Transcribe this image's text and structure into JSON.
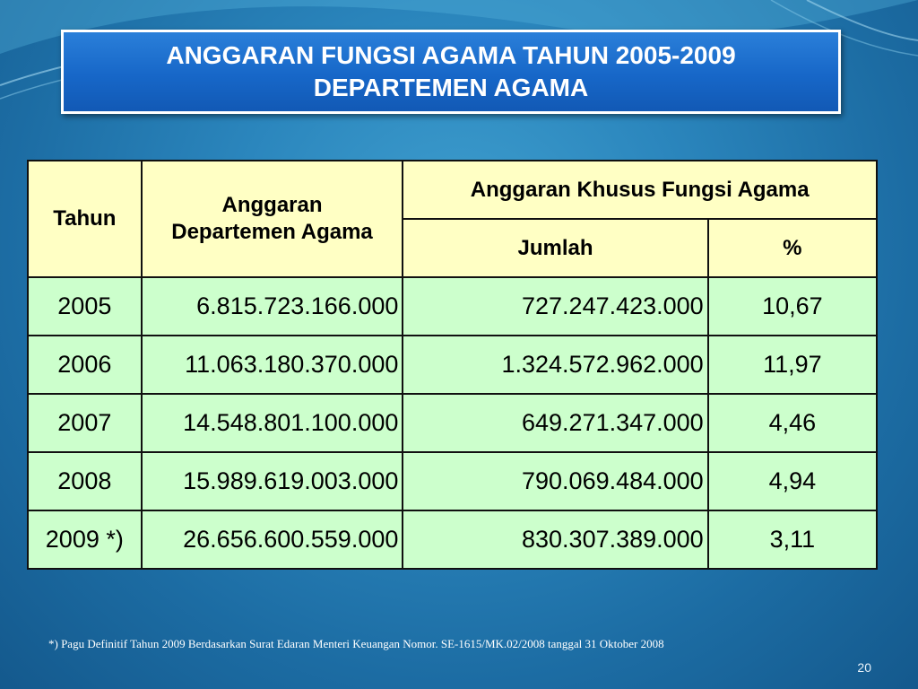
{
  "slide": {
    "title_line1": "ANGGARAN FUNGSI AGAMA TAHUN 2005-2009",
    "title_line2": "DEPARTEMEN AGAMA",
    "page_number": "20"
  },
  "table": {
    "headers": {
      "year": "Tahun",
      "budget_line1": "Anggaran",
      "budget_line2": "Departemen Agama",
      "special": "Anggaran Khusus Fungsi Agama",
      "amount": "Jumlah",
      "percent": "%"
    },
    "rows": [
      {
        "year": "2005",
        "budget": "6.815.723.166.000",
        "amount": "727.247.423.000",
        "percent": "10,67"
      },
      {
        "year": "2006",
        "budget": "11.063.180.370.000",
        "amount": "1.324.572.962.000",
        "percent": "11,97"
      },
      {
        "year": "2007",
        "budget": "14.548.801.100.000",
        "amount": "649.271.347.000",
        "percent": "4,46"
      },
      {
        "year": "2008",
        "budget": "15.989.619.003.000",
        "amount": "790.069.484.000",
        "percent": "4,94"
      },
      {
        "year": "2009 *)",
        "budget": "26.656.600.559.000",
        "amount": "830.307.389.000",
        "percent": "3,11"
      }
    ]
  },
  "footnote": "*) Pagu Definitif Tahun 2009 Berdasarkan Surat Edaran Menteri Keuangan Nomor. SE-1615/MK.02/2008 tanggal 31 Oktober 2008",
  "colors": {
    "background": "#2b86bd",
    "title_box": "#1767c8",
    "header_cell": "#ffffc4",
    "data_cell": "#ccffcc"
  }
}
